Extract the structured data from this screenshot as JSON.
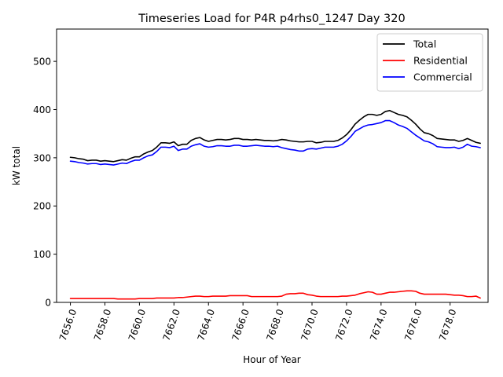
{
  "chart_data": {
    "type": "line",
    "title": "Timeseries Load for P4R p4rhs0_1247  Day 320",
    "xlabel": "Hour of Year",
    "ylabel": "kW total",
    "xlim": [
      7655.2,
      7680.2
    ],
    "ylim": [
      0,
      567
    ],
    "x_ticks": [
      7656,
      7658,
      7660,
      7662,
      7664,
      7666,
      7668,
      7670,
      7672,
      7674,
      7676,
      7678
    ],
    "x_tick_labels": [
      "7656.0",
      "7658.0",
      "7660.0",
      "7662.0",
      "7664.0",
      "7666.0",
      "7668.0",
      "7670.0",
      "7672.0",
      "7674.0",
      "7676.0",
      "7678.0"
    ],
    "y_ticks": [
      0,
      100,
      200,
      300,
      400,
      500
    ],
    "y_tick_labels": [
      "0",
      "100",
      "200",
      "300",
      "400",
      "500"
    ],
    "legend_position": "top-right",
    "x": [
      7656.0,
      7656.25,
      7656.5,
      7656.75,
      7657.0,
      7657.25,
      7657.5,
      7657.75,
      7658.0,
      7658.25,
      7658.5,
      7658.75,
      7659.0,
      7659.25,
      7659.5,
      7659.75,
      7660.0,
      7660.25,
      7660.5,
      7660.75,
      7661.0,
      7661.25,
      7661.5,
      7661.75,
      7662.0,
      7662.25,
      7662.5,
      7662.75,
      7663.0,
      7663.25,
      7663.5,
      7663.75,
      7664.0,
      7664.25,
      7664.5,
      7664.75,
      7665.0,
      7665.25,
      7665.5,
      7665.75,
      7666.0,
      7666.25,
      7666.5,
      7666.75,
      7667.0,
      7667.25,
      7667.5,
      7667.75,
      7668.0,
      7668.25,
      7668.5,
      7668.75,
      7669.0,
      7669.25,
      7669.5,
      7669.75,
      7670.0,
      7670.25,
      7670.5,
      7670.75,
      7671.0,
      7671.25,
      7671.5,
      7671.75,
      7672.0,
      7672.25,
      7672.5,
      7672.75,
      7673.0,
      7673.25,
      7673.5,
      7673.75,
      7674.0,
      7674.25,
      7674.5,
      7674.75,
      7675.0,
      7675.25,
      7675.5,
      7675.75,
      7676.0,
      7676.25,
      7676.5,
      7676.75,
      7677.0,
      7677.25,
      7677.5,
      7677.75,
      7678.0,
      7678.25,
      7678.5,
      7678.75,
      7679.0,
      7679.25,
      7679.5,
      7679.75
    ],
    "series": [
      {
        "name": "Total",
        "color": "#000000",
        "values": [
          301,
          300,
          298,
          297,
          294,
          295,
          295,
          293,
          294,
          293,
          292,
          294,
          296,
          295,
          299,
          302,
          302,
          308,
          312,
          315,
          322,
          331,
          331,
          330,
          333,
          325,
          328,
          328,
          336,
          340,
          342,
          337,
          334,
          336,
          338,
          338,
          337,
          338,
          340,
          340,
          338,
          338,
          337,
          338,
          337,
          336,
          336,
          335,
          336,
          338,
          337,
          335,
          334,
          333,
          333,
          334,
          334,
          331,
          332,
          334,
          334,
          334,
          336,
          341,
          348,
          358,
          370,
          378,
          385,
          390,
          390,
          388,
          390,
          396,
          398,
          394,
          390,
          388,
          385,
          378,
          370,
          360,
          352,
          350,
          346,
          340,
          339,
          338,
          337,
          337,
          334,
          336,
          340,
          336,
          332,
          330
        ]
      },
      {
        "name": "Residential",
        "color": "#ff0000",
        "values": [
          8,
          8,
          8,
          8,
          8,
          8,
          8,
          8,
          8,
          8,
          8,
          7,
          7,
          7,
          7,
          7,
          8,
          8,
          8,
          8,
          9,
          9,
          9,
          9,
          9,
          10,
          10,
          11,
          12,
          13,
          13,
          12,
          12,
          13,
          13,
          13,
          13,
          14,
          14,
          14,
          14,
          14,
          12,
          12,
          12,
          12,
          12,
          12,
          12,
          13,
          17,
          18,
          18,
          19,
          19,
          16,
          15,
          13,
          12,
          12,
          12,
          12,
          12,
          13,
          13,
          14,
          15,
          18,
          20,
          22,
          21,
          17,
          17,
          19,
          21,
          21,
          22,
          23,
          24,
          24,
          23,
          19,
          17,
          17,
          17,
          17,
          17,
          17,
          16,
          15,
          15,
          14,
          12,
          12,
          13,
          9
        ]
      },
      {
        "name": "Commercial",
        "color": "#0000ff",
        "values": [
          293,
          292,
          290,
          289,
          287,
          288,
          288,
          286,
          287,
          286,
          285,
          287,
          289,
          288,
          292,
          295,
          295,
          300,
          304,
          306,
          313,
          322,
          322,
          321,
          324,
          315,
          318,
          318,
          324,
          327,
          329,
          324,
          322,
          323,
          325,
          325,
          324,
          324,
          326,
          326,
          324,
          324,
          325,
          326,
          325,
          324,
          324,
          323,
          324,
          321,
          319,
          317,
          316,
          314,
          314,
          318,
          319,
          318,
          320,
          322,
          322,
          322,
          324,
          328,
          335,
          344,
          355,
          360,
          365,
          368,
          369,
          371,
          373,
          377,
          377,
          373,
          368,
          365,
          361,
          354,
          347,
          341,
          335,
          333,
          329,
          323,
          322,
          321,
          321,
          322,
          319,
          322,
          328,
          324,
          323,
          321
        ]
      }
    ]
  }
}
